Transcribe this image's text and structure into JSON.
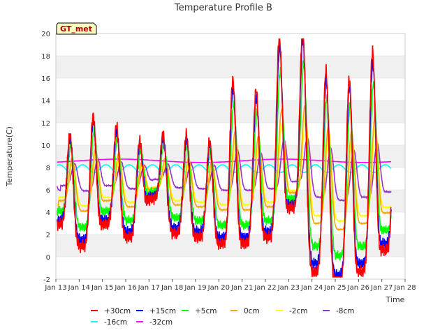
{
  "chart_data": {
    "type": "line",
    "title": "Temperature Profile B",
    "xlabel": "Time",
    "ylabel": "Temperature(C)",
    "badge": "GT_met",
    "x_ticks": [
      "Jan 13",
      "Jan 14",
      "Jan 15",
      "Jan 16",
      "Jan 17",
      "Jan 18",
      "Jan 19",
      "Jan 20",
      "Jan 21",
      "Jan 22",
      "Jan 23",
      "Jan 24",
      "Jan 25",
      "Jan 26",
      "Jan 27",
      "Jan 28"
    ],
    "x_range_days": [
      13,
      28
    ],
    "ylim": [
      -2,
      20
    ],
    "y_ticks": [
      "-2",
      "0",
      "2",
      "4",
      "6",
      "8",
      "10",
      "12",
      "14",
      "16",
      "18",
      "20"
    ],
    "grid": "horizontal bands",
    "legend_position": "bottom",
    "series": [
      {
        "name": "+30cm",
        "color": "#ff0000",
        "amp": 1.15,
        "off": 0.0,
        "lag": 0.0,
        "tmin": "2024-01-13T00:00"
      },
      {
        "name": "+15cm",
        "color": "#0000ff",
        "amp": 1.05,
        "off": 0.0,
        "lag": 0.01
      },
      {
        "name": "+5cm",
        "color": "#00ff00",
        "amp": 0.85,
        "off": 0.3,
        "lag": 0.04
      },
      {
        "name": "0cm",
        "color": "#ffa500",
        "amp": 0.55,
        "off": 0.9,
        "lag": 0.1
      },
      {
        "name": "-2cm",
        "color": "#ffff00",
        "amp": 0.45,
        "off": 1.2,
        "lag": 0.12
      },
      {
        "name": "-8cm",
        "color": "#9932cc",
        "amp": 0.28,
        "off": 0.0,
        "lag": 0.2
      },
      {
        "name": "-16cm",
        "color": "#00ffff",
        "amp": 0.0,
        "off": 0.0,
        "lag": 0.0
      },
      {
        "name": "-32cm",
        "color": "#ff00ff",
        "amp": 0.0,
        "off": 0.0,
        "lag": 0.0
      }
    ],
    "days": [
      {
        "day": 13.2,
        "min": 3.5,
        "max": 10.5
      },
      {
        "day": 14.2,
        "min": 1.8,
        "max": 12.0
      },
      {
        "day": 15.2,
        "min": 3.5,
        "max": 11.2
      },
      {
        "day": 16.2,
        "min": 2.5,
        "max": 10.0
      },
      {
        "day": 17.2,
        "min": 5.5,
        "max": 10.5
      },
      {
        "day": 18.2,
        "min": 2.8,
        "max": 10.5
      },
      {
        "day": 19.2,
        "min": 2.5,
        "max": 10.0
      },
      {
        "day": 20.2,
        "min": 2.0,
        "max": 14.8
      },
      {
        "day": 21.2,
        "min": 2.0,
        "max": 14.0
      },
      {
        "day": 22.2,
        "min": 2.5,
        "max": 18.2
      },
      {
        "day": 23.2,
        "min": 4.8,
        "max": 19.0
      },
      {
        "day": 24.2,
        "min": -0.2,
        "max": 15.5
      },
      {
        "day": 25.2,
        "min": -1.2,
        "max": 14.8
      },
      {
        "day": 26.2,
        "min": -0.2,
        "max": 17.0
      },
      {
        "day": 27.2,
        "min": 1.5,
        "max": 13.8
      }
    ],
    "deep_16cm": {
      "mean": 7.9,
      "amp": 0.35
    },
    "deep_32cm": {
      "mean": 8.6,
      "amp": 0.15
    }
  }
}
